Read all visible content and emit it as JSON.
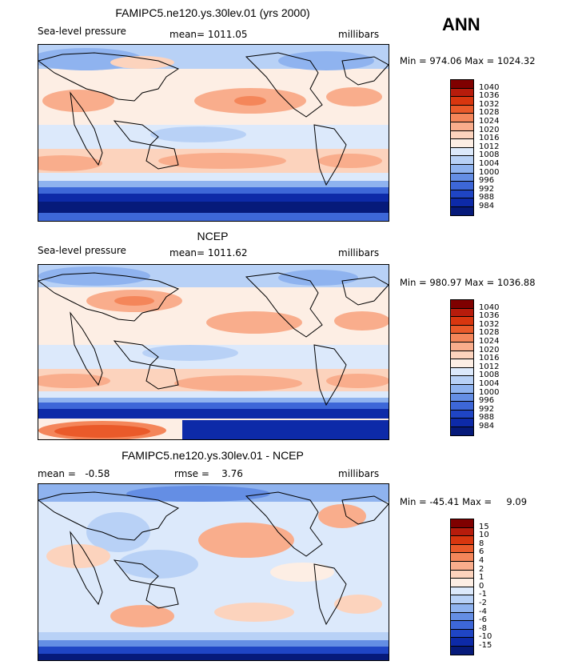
{
  "season": "ANN",
  "panels": [
    {
      "title": "FAMIPC5.ne120.ys.30lev.01 (yrs 2000)",
      "left_label": "Sea-level pressure",
      "center_label": "mean= 1011.05",
      "right_label": "millibars",
      "minmax": "Min = 974.06 Max = 1024.32",
      "colorbar_ticks": [
        "1040",
        "1036",
        "1032",
        "1028",
        "1024",
        "1020",
        "1016",
        "1012",
        "1008",
        "1004",
        "1000",
        "996",
        "992",
        "988",
        "984"
      ]
    },
    {
      "title": "NCEP",
      "left_label": "Sea-level pressure",
      "center_label": "mean= 1011.62",
      "right_label": "millibars",
      "minmax": "Min = 980.97 Max = 1036.88",
      "colorbar_ticks": [
        "1040",
        "1036",
        "1032",
        "1028",
        "1024",
        "1020",
        "1016",
        "1012",
        "1008",
        "1004",
        "1000",
        "996",
        "992",
        "988",
        "984"
      ]
    },
    {
      "title": "FAMIPC5.ne120.ys.30lev.01 - NCEP",
      "left_label": "mean =   -0.58",
      "center_label": "rmse =    3.76",
      "right_label": "millibars",
      "minmax": "Min = -45.41 Max =     9.09",
      "colorbar_ticks": [
        "15",
        "10",
        "8",
        "6",
        "4",
        "2",
        "1",
        "0",
        "-1",
        "-2",
        "-4",
        "-6",
        "-8",
        "-10",
        "-15"
      ]
    }
  ],
  "colors": {
    "scale": [
      "#7f0000",
      "#b71c0c",
      "#d8360f",
      "#ea5a2a",
      "#f4865a",
      "#f9ad8c",
      "#fcd3bd",
      "#fdeee4",
      "#dce9fb",
      "#b8d1f6",
      "#8fb3ef",
      "#648ee4",
      "#3d67d8",
      "#1f45c4",
      "#0d2aa8",
      "#061a7a"
    ]
  }
}
